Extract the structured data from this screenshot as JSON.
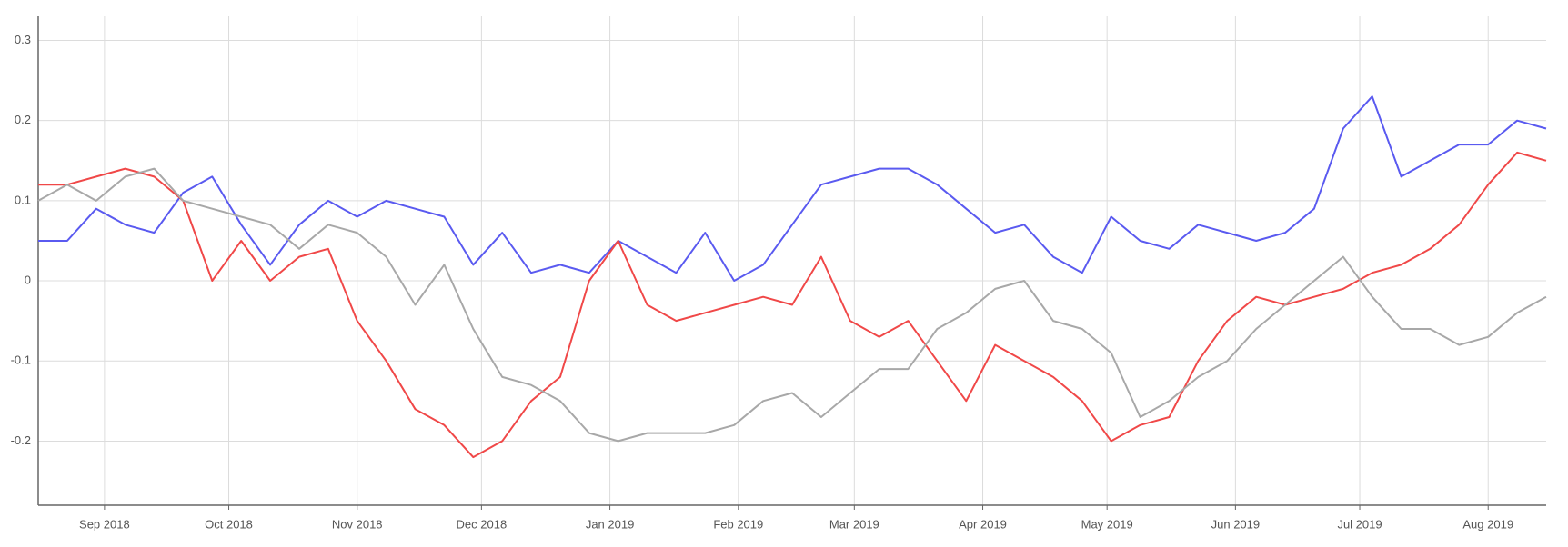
{
  "chart_data": {
    "type": "line",
    "x": [
      -16,
      -9,
      -2,
      5,
      12,
      19,
      26,
      33,
      40,
      47,
      54,
      61,
      68,
      75,
      82,
      89,
      96,
      103,
      110,
      117,
      124,
      131,
      138,
      145,
      152,
      159,
      166,
      173,
      180,
      187,
      194,
      201,
      208,
      215,
      222,
      229,
      236,
      243,
      250,
      257,
      264,
      271,
      278,
      285,
      292,
      299,
      306,
      313,
      320,
      327,
      334,
      341,
      348
    ],
    "series": [
      {
        "color": "#5a5af0",
        "values": [
          0.05,
          0.05,
          0.09,
          0.07,
          0.06,
          0.11,
          0.13,
          0.07,
          0.02,
          0.07,
          0.1,
          0.08,
          0.1,
          0.09,
          0.08,
          0.02,
          0.06,
          0.01,
          0.02,
          0.01,
          0.05,
          0.03,
          0.01,
          0.06,
          0.0,
          0.02,
          0.07,
          0.12,
          0.13,
          0.14,
          0.14,
          0.12,
          0.09,
          0.06,
          0.07,
          0.03,
          0.01,
          0.08,
          0.05,
          0.04,
          0.07,
          0.06,
          0.05,
          0.06,
          0.09,
          0.19,
          0.23,
          0.13,
          0.15,
          0.17,
          0.17,
          0.2,
          0.19
        ]
      },
      {
        "color": "#f04848",
        "values": [
          0.12,
          0.12,
          0.13,
          0.14,
          0.13,
          0.1,
          0.0,
          0.05,
          0.0,
          0.03,
          0.04,
          -0.05,
          -0.1,
          -0.16,
          -0.18,
          -0.22,
          -0.2,
          -0.15,
          -0.12,
          0.0,
          0.05,
          -0.03,
          -0.05,
          -0.04,
          -0.03,
          -0.02,
          -0.03,
          0.03,
          -0.05,
          -0.07,
          -0.05,
          -0.1,
          -0.15,
          -0.08,
          -0.1,
          -0.12,
          -0.15,
          -0.2,
          -0.18,
          -0.17,
          -0.1,
          -0.05,
          -0.02,
          -0.03,
          -0.02,
          -0.01,
          0.01,
          0.02,
          0.04,
          0.07,
          0.12,
          0.16,
          0.15
        ]
      },
      {
        "color": "#a8a8a8",
        "values": [
          0.1,
          0.12,
          0.1,
          0.13,
          0.14,
          0.1,
          0.09,
          0.08,
          0.07,
          0.04,
          0.07,
          0.06,
          0.03,
          -0.03,
          0.02,
          -0.06,
          -0.12,
          -0.13,
          -0.15,
          -0.19,
          -0.2,
          -0.19,
          -0.19,
          -0.19,
          -0.18,
          -0.15,
          -0.14,
          -0.17,
          -0.14,
          -0.11,
          -0.11,
          -0.06,
          -0.04,
          -0.01,
          0.0,
          -0.05,
          -0.06,
          -0.09,
          -0.17,
          -0.15,
          -0.12,
          -0.1,
          -0.06,
          -0.03,
          0.0,
          0.03,
          -0.02,
          -0.06,
          -0.06,
          -0.08,
          -0.07,
          -0.04,
          -0.02
        ]
      }
    ],
    "xlim": [
      -16,
      348
    ],
    "xticks": [
      {
        "value": 0,
        "label": "Sep 2018"
      },
      {
        "value": 30,
        "label": "Oct 2018"
      },
      {
        "value": 61,
        "label": "Nov 2018"
      },
      {
        "value": 91,
        "label": "Dec 2018"
      },
      {
        "value": 122,
        "label": "Jan 2019"
      },
      {
        "value": 153,
        "label": "Feb 2019"
      },
      {
        "value": 181,
        "label": "Mar 2019"
      },
      {
        "value": 212,
        "label": "Apr 2019"
      },
      {
        "value": 242,
        "label": "May 2019"
      },
      {
        "value": 273,
        "label": "Jun 2019"
      },
      {
        "value": 303,
        "label": "Jul 2019"
      },
      {
        "value": 334,
        "label": "Aug 2019"
      }
    ],
    "ylim": [
      -0.28,
      0.33
    ],
    "yticks": [
      -0.2,
      -0.1,
      0,
      0.1,
      0.2,
      0.3
    ],
    "grid": true
  }
}
